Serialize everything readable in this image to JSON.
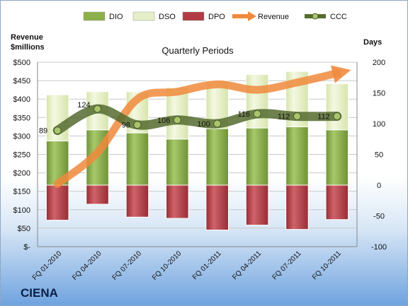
{
  "chart_data": {
    "type": "bar",
    "subtitle": "Quarterly Periods",
    "company": "CIENA",
    "y_left_label_1": "Revenue",
    "y_left_label_2": "$millions",
    "y_right_label": "Days",
    "ylim_left": [
      0,
      500
    ],
    "ylim_right": [
      -100,
      200
    ],
    "y_left_ticks": [
      "$-",
      "$50",
      "$100",
      "$150",
      "$200",
      "$250",
      "$300",
      "$350",
      "$400",
      "$450",
      "$500"
    ],
    "y_right_ticks": [
      "-100",
      "-50",
      "0",
      "50",
      "100",
      "150",
      "200"
    ],
    "categories": [
      "FQ 01-2010",
      "FQ 04-2010",
      "FQ 07-2010",
      "FQ 10-2010",
      "FQ 01-2011",
      "FQ 04-2011",
      "FQ 07-2011",
      "FQ 10-2011"
    ],
    "legend": [
      {
        "key": "DIO",
        "label": "DIO",
        "color": "#8cb04a"
      },
      {
        "key": "DSO",
        "label": "DSO",
        "color": "#e4eec8"
      },
      {
        "key": "DPO",
        "label": "DPO",
        "color": "#b23a42"
      },
      {
        "key": "Revenue",
        "label": "Revenue",
        "color": "#f08a3c"
      },
      {
        "key": "CCC",
        "label": "CCC",
        "color": "#556b2f"
      }
    ],
    "series": [
      {
        "name": "DIO",
        "axis": "right",
        "values": [
          72,
          90,
          85,
          75,
          92,
          93,
          95,
          90
        ]
      },
      {
        "name": "DSO",
        "axis": "right",
        "values": [
          75,
          62,
          67,
          84,
          78,
          87,
          90,
          75
        ]
      },
      {
        "name": "DPO",
        "axis": "right",
        "values": [
          -57,
          -31,
          -52,
          -54,
          -73,
          -65,
          -72,
          -56
        ]
      },
      {
        "name": "Revenue",
        "axis": "left",
        "values": [
          170,
          255,
          400,
          420,
          440,
          425,
          445,
          470
        ]
      },
      {
        "name": "CCC",
        "axis": "right",
        "values": [
          89,
          124,
          98,
          106,
          100,
          116,
          112,
          112
        ]
      }
    ],
    "ccc_labels": [
      "89",
      "124",
      "98",
      "106",
      "100",
      "116",
      "112",
      "112"
    ]
  }
}
